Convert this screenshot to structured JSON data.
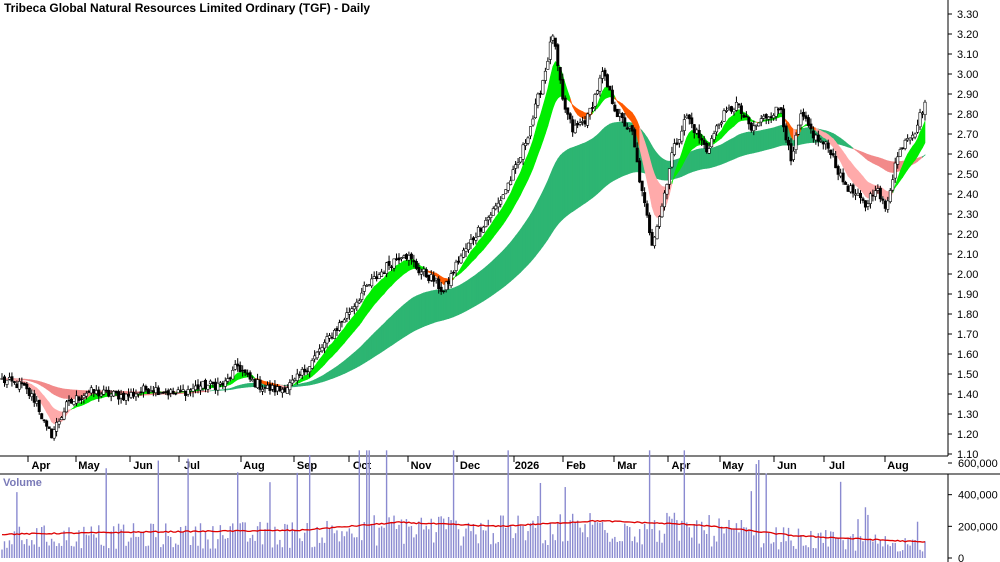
{
  "chart_data": [
    {
      "type": "candlestick",
      "title": "Tribeca Global Natural Resources Limited Ordinary (TGF) - Daily",
      "ylim": [
        1.1,
        3.35
      ],
      "y_ticks": [
        "3.30",
        "3.20",
        "3.10",
        "3.00",
        "2.90",
        "2.80",
        "2.70",
        "2.60",
        "2.50",
        "2.40",
        "2.30",
        "2.20",
        "2.10",
        "2.00",
        "1.90",
        "1.80",
        "1.70",
        "1.60",
        "1.50",
        "1.40",
        "1.30",
        "1.20",
        "1.10"
      ],
      "x_ticks": [
        "Apr",
        "May",
        "Jun",
        "Jul",
        "Aug",
        "Sep",
        "Oct",
        "Nov",
        "Dec",
        "2026",
        "Feb",
        "Mar",
        "Apr",
        "May",
        "Jun",
        "Jul",
        "Aug"
      ],
      "grid": false,
      "price_anchors": [
        {
          "day": 0,
          "price": 1.47
        },
        {
          "day": 8,
          "price": 1.44
        },
        {
          "day": 14,
          "price": 1.36
        },
        {
          "day": 18,
          "price": 1.22
        },
        {
          "day": 20,
          "price": 1.2
        },
        {
          "day": 26,
          "price": 1.34
        },
        {
          "day": 34,
          "price": 1.41
        },
        {
          "day": 50,
          "price": 1.39
        },
        {
          "day": 60,
          "price": 1.43
        },
        {
          "day": 70,
          "price": 1.4
        },
        {
          "day": 80,
          "price": 1.44
        },
        {
          "day": 90,
          "price": 1.45
        },
        {
          "day": 95,
          "price": 1.54
        },
        {
          "day": 100,
          "price": 1.47
        },
        {
          "day": 106,
          "price": 1.43
        },
        {
          "day": 112,
          "price": 1.42
        },
        {
          "day": 118,
          "price": 1.46
        },
        {
          "day": 124,
          "price": 1.55
        },
        {
          "day": 130,
          "price": 1.65
        },
        {
          "day": 138,
          "price": 1.78
        },
        {
          "day": 146,
          "price": 1.92
        },
        {
          "day": 156,
          "price": 2.05
        },
        {
          "day": 162,
          "price": 2.11
        },
        {
          "day": 168,
          "price": 2.02
        },
        {
          "day": 174,
          "price": 1.97
        },
        {
          "day": 178,
          "price": 1.91
        },
        {
          "day": 184,
          "price": 2.07
        },
        {
          "day": 192,
          "price": 2.22
        },
        {
          "day": 200,
          "price": 2.35
        },
        {
          "day": 208,
          "price": 2.55
        },
        {
          "day": 214,
          "price": 2.78
        },
        {
          "day": 219,
          "price": 3.02
        },
        {
          "day": 222,
          "price": 3.2
        },
        {
          "day": 226,
          "price": 2.86
        },
        {
          "day": 230,
          "price": 2.72
        },
        {
          "day": 236,
          "price": 2.78
        },
        {
          "day": 242,
          "price": 3.0
        },
        {
          "day": 248,
          "price": 2.8
        },
        {
          "day": 254,
          "price": 2.7
        },
        {
          "day": 258,
          "price": 2.4
        },
        {
          "day": 262,
          "price": 2.16
        },
        {
          "day": 266,
          "price": 2.34
        },
        {
          "day": 270,
          "price": 2.6
        },
        {
          "day": 276,
          "price": 2.79
        },
        {
          "day": 284,
          "price": 2.62
        },
        {
          "day": 290,
          "price": 2.78
        },
        {
          "day": 296,
          "price": 2.85
        },
        {
          "day": 302,
          "price": 2.72
        },
        {
          "day": 308,
          "price": 2.79
        },
        {
          "day": 314,
          "price": 2.83
        },
        {
          "day": 318,
          "price": 2.55
        },
        {
          "day": 322,
          "price": 2.79
        },
        {
          "day": 328,
          "price": 2.68
        },
        {
          "day": 334,
          "price": 2.62
        },
        {
          "day": 338,
          "price": 2.48
        },
        {
          "day": 342,
          "price": 2.42
        },
        {
          "day": 348,
          "price": 2.34
        },
        {
          "day": 352,
          "price": 2.44
        },
        {
          "day": 356,
          "price": 2.32
        },
        {
          "day": 360,
          "price": 2.55
        },
        {
          "day": 364,
          "price": 2.68
        },
        {
          "day": 368,
          "price": 2.72
        },
        {
          "day": 372,
          "price": 2.86
        }
      ],
      "series": [
        {
          "name": "Short-term MA ribbon",
          "up_color": "#00ee00",
          "down_color": "#ff5a00",
          "faded_down_color": "#ffaaaa"
        },
        {
          "name": "Long-term MA ribbon",
          "up_color": "#2db572",
          "down_color": "#f28a8a"
        }
      ]
    },
    {
      "type": "bar",
      "title": "Volume",
      "ylim": [
        0,
        700000
      ],
      "y_ticks": [
        "600,000",
        "400,000",
        "200,000",
        "0"
      ],
      "series": [
        {
          "name": "Volume",
          "color": "#8a8ad0"
        },
        {
          "name": "Volume MA",
          "color": "#dd0000"
        }
      ],
      "volume_ma_anchors": [
        {
          "day": 0,
          "value": 150000
        },
        {
          "day": 60,
          "value": 165000
        },
        {
          "day": 120,
          "value": 175000
        },
        {
          "day": 160,
          "value": 225000
        },
        {
          "day": 200,
          "value": 200000
        },
        {
          "day": 240,
          "value": 235000
        },
        {
          "day": 280,
          "value": 210000
        },
        {
          "day": 320,
          "value": 140000
        },
        {
          "day": 372,
          "value": 100000
        }
      ]
    }
  ]
}
